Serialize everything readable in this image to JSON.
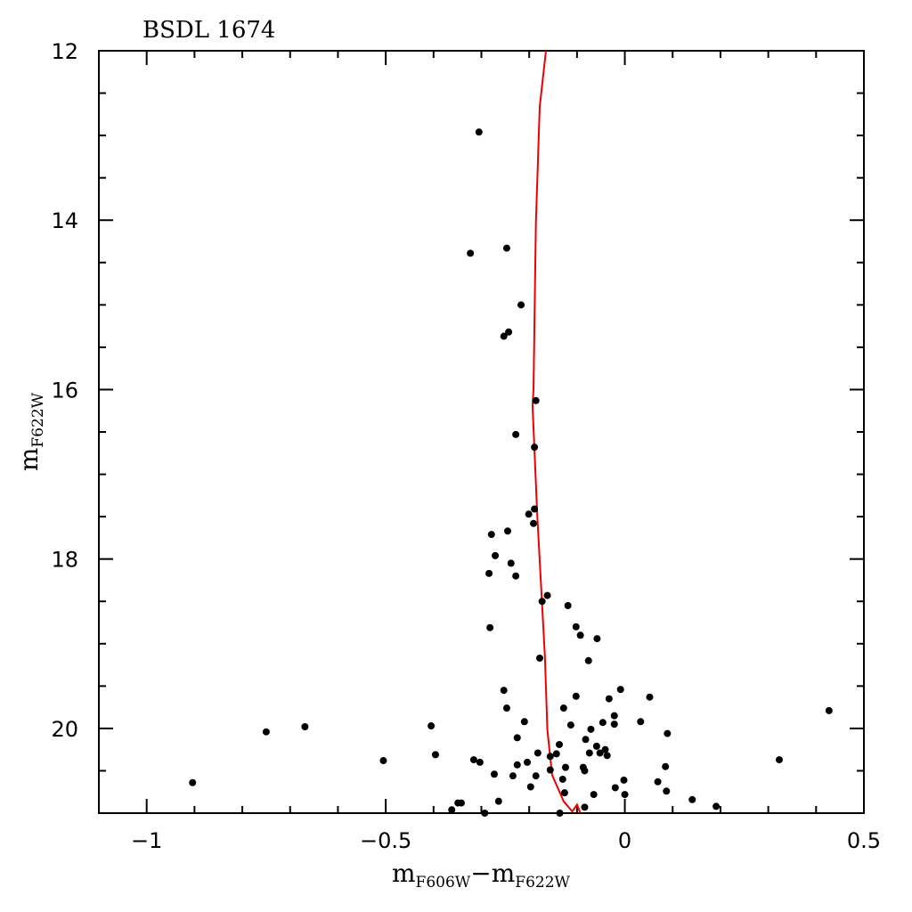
{
  "chart_data": {
    "type": "scatter",
    "title": "BSDL 1674",
    "xlabel": [
      "m",
      "F606W",
      "−m",
      "F622W"
    ],
    "ylabel": [
      "m",
      "F622W"
    ],
    "xlim": [
      -1.1,
      0.5
    ],
    "ylim": [
      21,
      12
    ],
    "xticks": [
      {
        "value": -1,
        "label": "−1"
      },
      {
        "value": -0.5,
        "label": "−0.5"
      },
      0,
      0.5
    ],
    "xminorticks": [
      -0.9,
      -0.8,
      -0.7,
      -0.6,
      -0.4,
      -0.3,
      -0.2,
      -0.1,
      0.1,
      0.2,
      0.3,
      0.4
    ],
    "yticks": [
      12,
      14,
      16,
      18,
      20
    ],
    "yminorticks": [
      12.5,
      13,
      13.5,
      14.5,
      15,
      15.5,
      16.5,
      17,
      17.5,
      18.5,
      19,
      19.5,
      20.5
    ],
    "points": {
      "color": "#000000",
      "x": [
        -0.305,
        -0.323,
        -0.247,
        -0.217,
        -0.243,
        -0.253,
        -0.186,
        -0.228,
        -0.189,
        -0.189,
        -0.201,
        -0.191,
        -0.245,
        -0.279,
        -0.271,
        -0.238,
        -0.284,
        -0.228,
        -0.162,
        -0.173,
        -0.119,
        -0.102,
        -0.282,
        -0.093,
        -0.058,
        -0.178,
        -0.076,
        -0.253,
        -0.009,
        -0.102,
        -0.033,
        0.052,
        0.427,
        -0.247,
        -0.128,
        -0.022,
        -0.21,
        -0.113,
        -0.046,
        -0.022,
        0.033,
        -0.405,
        -0.669,
        -0.75,
        -0.071,
        0.089,
        -0.225,
        -0.082,
        -0.137,
        -0.059,
        -0.041,
        -0.182,
        -0.074,
        -0.052,
        -0.143,
        -0.396,
        -0.037,
        -0.156,
        -0.316,
        0.323,
        -0.505,
        -0.303,
        -0.204,
        -0.225,
        -0.124,
        -0.087,
        -0.156,
        0.085,
        -0.084,
        -0.273,
        -0.234,
        -0.186,
        -0.13,
        0.069,
        -0.002,
        -0.904,
        -0.197,
        -0.02,
        0.087,
        -0.126,
        -0.065,
        0,
        -0.264,
        0.141,
        -0.342,
        -0.349,
        0.191,
        -0.084,
        -0.362,
        -0.293,
        -0.136
      ],
      "y": [
        12.96,
        14.39,
        14.33,
        15.0,
        15.32,
        15.37,
        16.13,
        16.53,
        16.68,
        17.41,
        17.47,
        17.58,
        17.67,
        17.71,
        17.96,
        18.05,
        18.17,
        18.2,
        18.43,
        18.5,
        18.55,
        18.8,
        18.81,
        18.9,
        18.94,
        19.17,
        19.2,
        19.55,
        19.54,
        19.62,
        19.65,
        19.63,
        19.79,
        19.76,
        19.76,
        19.85,
        19.92,
        19.96,
        19.93,
        19.95,
        19.92,
        19.97,
        19.98,
        20.04,
        20.01,
        20.06,
        20.11,
        20.13,
        20.19,
        20.21,
        20.25,
        20.29,
        20.29,
        20.29,
        20.3,
        20.31,
        20.32,
        20.33,
        20.37,
        20.37,
        20.38,
        20.4,
        20.4,
        20.43,
        20.46,
        20.46,
        20.49,
        20.45,
        20.5,
        20.54,
        20.56,
        20.56,
        20.6,
        20.63,
        20.61,
        20.64,
        20.69,
        20.7,
        20.74,
        20.76,
        20.78,
        20.78,
        20.86,
        20.84,
        20.88,
        20.88,
        20.92,
        20.93,
        20.96,
        21.0,
        21.0
      ]
    },
    "isochrone": {
      "color": "#ee0000",
      "x": [
        -0.165,
        -0.178,
        -0.186,
        -0.191,
        -0.193,
        -0.183,
        -0.173,
        -0.167,
        -0.162,
        -0.152,
        -0.128,
        -0.11,
        -0.1,
        -0.093
      ],
      "y": [
        12,
        12.66,
        14.03,
        16,
        16.19,
        17.5,
        18.54,
        19.17,
        20.02,
        20.55,
        20.86,
        20.98,
        20.9,
        21
      ]
    }
  }
}
